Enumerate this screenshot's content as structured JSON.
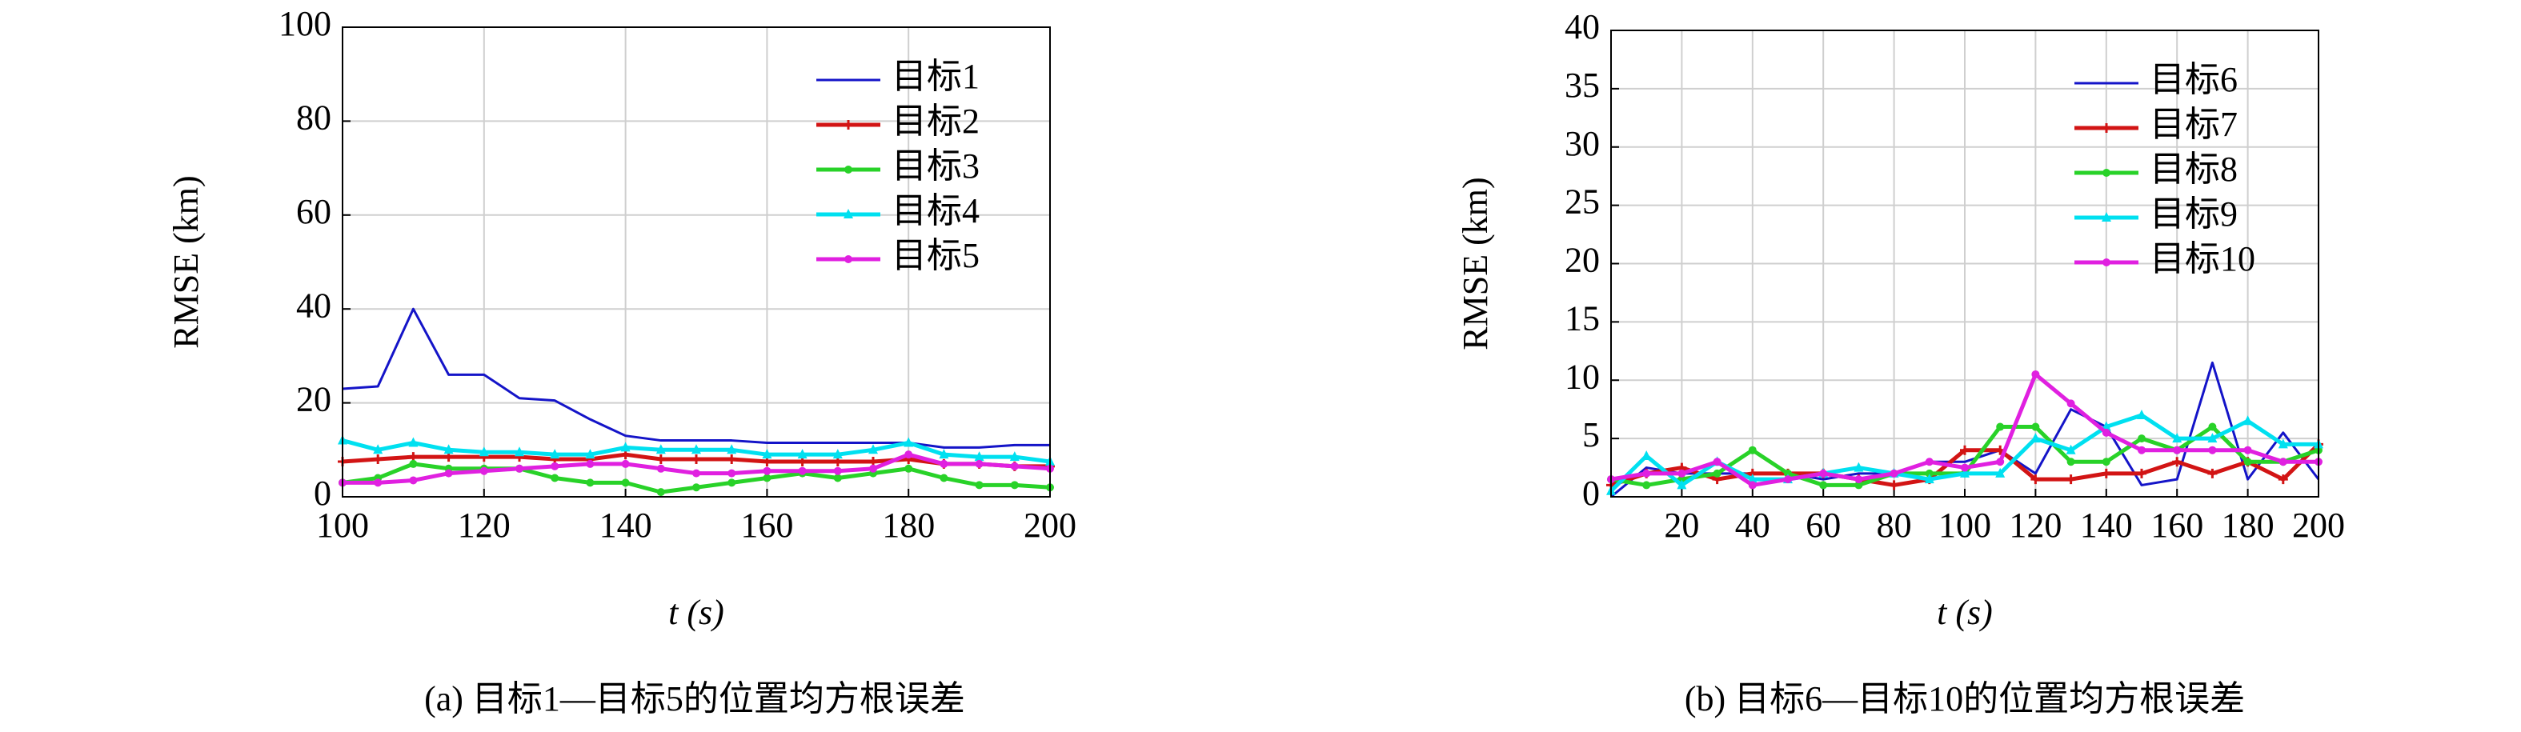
{
  "chart_data": [
    {
      "type": "line",
      "caption": "(a) 目标1—目标5的位置均方根误差",
      "xlabel": "t (s)",
      "ylabel": "RMSE (km)",
      "x": [
        100,
        105,
        110,
        115,
        120,
        125,
        130,
        135,
        140,
        145,
        150,
        155,
        160,
        165,
        170,
        175,
        180,
        185,
        190,
        195,
        200
      ],
      "xlim": [
        100,
        200
      ],
      "xticks": [
        100,
        120,
        140,
        160,
        180,
        200
      ],
      "ylim": [
        0,
        100
      ],
      "yticks": [
        0,
        20,
        40,
        60,
        80,
        100
      ],
      "grid": true,
      "legend": "upper right",
      "series": [
        {
          "name": "目标1",
          "color": "#1414c8",
          "marker": "none",
          "values": [
            23,
            23.5,
            40,
            26,
            26,
            21,
            20.5,
            16.5,
            13,
            12,
            12,
            12,
            11.5,
            11.5,
            11.5,
            11.5,
            11.5,
            10.5,
            10.5,
            11,
            11
          ]
        },
        {
          "name": "目标2",
          "color": "#d21414",
          "marker": "plus",
          "values": [
            7.5,
            8,
            8.5,
            8.5,
            8.5,
            8.5,
            8,
            8,
            9,
            8,
            8,
            8,
            7.5,
            7.5,
            7.5,
            7.5,
            8,
            7,
            7,
            6.5,
            6.5
          ]
        },
        {
          "name": "目标3",
          "color": "#28d228",
          "marker": "circle",
          "values": [
            3,
            4,
            7,
            6,
            6,
            6,
            4,
            3,
            3,
            1,
            2,
            3,
            4,
            5,
            4,
            5,
            6,
            4,
            2.5,
            2.5,
            2
          ]
        },
        {
          "name": "目标4",
          "color": "#00e0f0",
          "marker": "triangle",
          "values": [
            12,
            10,
            11.5,
            10,
            9.5,
            9.5,
            9,
            9,
            10.5,
            10,
            10,
            10,
            9,
            9,
            9,
            10,
            11.5,
            9,
            8.5,
            8.5,
            7.5
          ]
        },
        {
          "name": "目标5",
          "color": "#e020e0",
          "marker": "circle",
          "values": [
            3,
            3,
            3.5,
            5,
            5.5,
            6,
            6.5,
            7,
            7,
            6,
            5,
            5,
            5.5,
            5.5,
            5.5,
            6,
            9,
            7,
            7,
            6.5,
            6
          ]
        }
      ]
    },
    {
      "type": "line",
      "caption": "(b) 目标6—目标10的位置均方根误差",
      "xlabel": "t (s)",
      "ylabel": "RMSE (km)",
      "x": [
        0,
        10,
        20,
        30,
        40,
        50,
        60,
        70,
        80,
        90,
        100,
        110,
        120,
        130,
        140,
        150,
        160,
        170,
        180,
        190,
        200
      ],
      "xlim": [
        0,
        200
      ],
      "xticks": [
        20,
        40,
        60,
        80,
        100,
        120,
        140,
        160,
        180,
        200
      ],
      "ylim": [
        0,
        40
      ],
      "yticks": [
        0,
        5,
        10,
        15,
        20,
        25,
        30,
        35,
        40
      ],
      "grid": true,
      "legend": "upper right",
      "series": [
        {
          "name": "目标6",
          "color": "#1414c8",
          "marker": "none",
          "values": [
            0,
            2.5,
            2,
            2,
            2,
            2,
            1.5,
            2,
            2,
            3,
            3,
            4,
            2,
            7.5,
            6,
            1,
            1.5,
            11.5,
            1.5,
            5.5,
            1.5
          ]
        },
        {
          "name": "目标7",
          "color": "#d21414",
          "marker": "plus",
          "values": [
            1,
            2,
            2.5,
            1.5,
            2,
            2,
            2,
            1.5,
            1,
            1.5,
            4,
            4,
            1.5,
            1.5,
            2,
            2,
            3,
            2,
            3,
            1.5,
            4.5
          ]
        },
        {
          "name": "目标8",
          "color": "#28d228",
          "marker": "circle",
          "values": [
            1.5,
            1,
            1.5,
            2,
            4,
            2,
            1,
            1,
            2,
            2,
            2,
            6,
            6,
            3,
            3,
            5,
            4,
            6,
            3,
            3,
            4
          ]
        },
        {
          "name": "目标9",
          "color": "#00e0f0",
          "marker": "triangle",
          "values": [
            0.5,
            3.5,
            1,
            3,
            1.5,
            1.5,
            2,
            2.5,
            2,
            1.5,
            2,
            2,
            5,
            4,
            6,
            7,
            5,
            5,
            6.5,
            4.5,
            4.5
          ]
        },
        {
          "name": "目标10",
          "color": "#e020e0",
          "marker": "circle",
          "values": [
            1.5,
            2,
            2,
            3,
            1,
            1.5,
            2,
            1.5,
            2,
            3,
            2.5,
            3,
            10.5,
            8,
            5.5,
            4,
            4,
            4,
            4,
            3,
            3
          ]
        }
      ]
    }
  ]
}
